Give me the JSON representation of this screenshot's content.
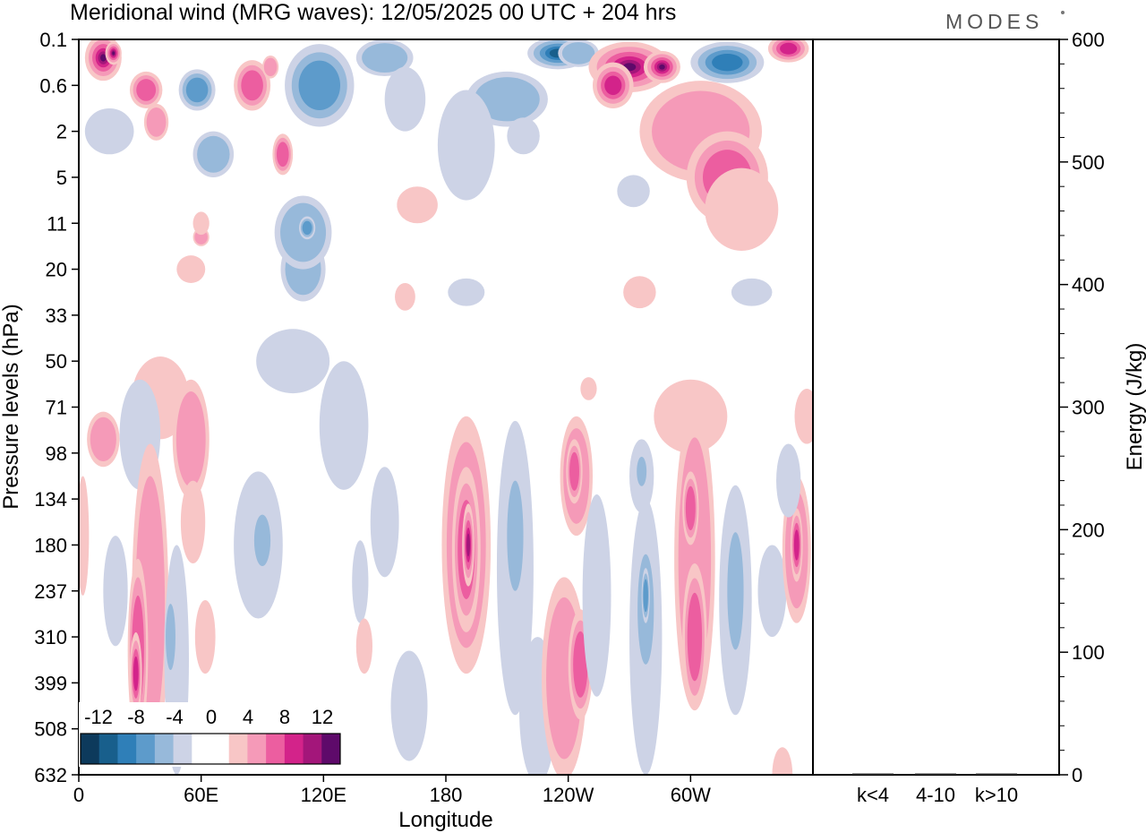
{
  "title": "Meridional wind (MRG waves):  12/05/2025  00 UTC  + 204 hrs",
  "logo": "MODES",
  "colors": {
    "neg": [
      "#0d3a5c",
      "#185f8c",
      "#2f7fb8",
      "#5d9bcb",
      "#97b9da",
      "#cdd3e6"
    ],
    "pos": [
      "#f8c6c6",
      "#f59ab8",
      "#ec5ea0",
      "#d3238a",
      "#a3167a",
      "#5e0a6a"
    ],
    "frame": "#000000"
  },
  "chart_data": [
    {
      "type": "heatmap",
      "title": "Meridional wind (MRG waves):  12/05/2025  00 UTC  + 204 hrs",
      "xlabel": "Longitude",
      "ylabel": "Pressure levels (hPa)",
      "x_ticks": [
        "0",
        "60E",
        "120E",
        "180",
        "120W",
        "60W"
      ],
      "x_tick_values": [
        0,
        60,
        120,
        180,
        240,
        300
      ],
      "xlim": [
        0,
        360
      ],
      "y_ticks": [
        "0.1",
        "0.6",
        "2",
        "5",
        "11",
        "20",
        "33",
        "50",
        "71",
        "98",
        "134",
        "180",
        "237",
        "310",
        "399",
        "508",
        "632"
      ],
      "y_scale": "pressure levels, top to bottom",
      "colorbar": {
        "labels": [
          "-12",
          "-8",
          "-4",
          "0",
          "4",
          "8",
          "12"
        ],
        "levels": [
          -14,
          -12,
          -10,
          -8,
          -6,
          -4,
          -2,
          2,
          4,
          6,
          8,
          10,
          12,
          14
        ],
        "placement": "bottom-left inset"
      },
      "blobs": [
        {
          "lon": 12,
          "lev": 0.4,
          "w": 9,
          "h": 0.5,
          "v": 11
        },
        {
          "lon": 17,
          "lev": 0.3,
          "w": 4,
          "h": 0.25,
          "v": 13
        },
        {
          "lon": 33,
          "lev": 1.1,
          "w": 8,
          "h": 0.4,
          "v": 5
        },
        {
          "lon": 38,
          "lev": 1.8,
          "w": 6,
          "h": 0.4,
          "v": 3
        },
        {
          "lon": 58,
          "lev": 1.1,
          "w": 9,
          "h": 0.45,
          "v": -5
        },
        {
          "lon": 66,
          "lev": 2.5,
          "w": 10,
          "h": 0.5,
          "v": -4
        },
        {
          "lon": 85,
          "lev": 1.0,
          "w": 9,
          "h": 0.55,
          "v": 5
        },
        {
          "lon": 94,
          "lev": 0.6,
          "w": 4,
          "h": 0.25,
          "v": 3
        },
        {
          "lon": 100,
          "lev": 2.5,
          "w": 5,
          "h": 0.45,
          "v": 5
        },
        {
          "lon": 60,
          "lev": 4.3,
          "w": 4,
          "h": 0.2,
          "v": 3
        },
        {
          "lon": 118,
          "lev": 1.0,
          "w": 17,
          "h": 0.9,
          "v": -5
        },
        {
          "lon": 150,
          "lev": 0.4,
          "w": 14,
          "h": 0.4,
          "v": -3
        },
        {
          "lon": 160,
          "lev": 1.3,
          "w": 10,
          "h": 0.7,
          "v": -2
        },
        {
          "lon": 15,
          "lev": 2.0,
          "w": 12,
          "h": 0.5,
          "v": -2
        },
        {
          "lon": 60,
          "lev": 4.0,
          "w": 4,
          "h": 0.25,
          "v": 2
        },
        {
          "lon": 55,
          "lev": 5.0,
          "w": 7,
          "h": 0.3,
          "v": 2
        },
        {
          "lon": 110,
          "lev": 5.0,
          "w": 11,
          "h": 0.7,
          "v": -3
        },
        {
          "lon": 210,
          "lev": 1.3,
          "w": 20,
          "h": 0.6,
          "v": -4
        },
        {
          "lon": 190,
          "lev": 2.3,
          "w": 14,
          "h": 1.2,
          "v": -2
        },
        {
          "lon": 218,
          "lev": 2.1,
          "w": 8,
          "h": 0.4,
          "v": -2
        },
        {
          "lon": 235,
          "lev": 0.3,
          "w": 15,
          "h": 0.35,
          "v": -9
        },
        {
          "lon": 245,
          "lev": 0.3,
          "w": 10,
          "h": 0.3,
          "v": -4
        },
        {
          "lon": 270,
          "lev": 0.6,
          "w": 20,
          "h": 0.55,
          "v": 12
        },
        {
          "lon": 286,
          "lev": 0.6,
          "w": 9,
          "h": 0.35,
          "v": 15
        },
        {
          "lon": 262,
          "lev": 1.0,
          "w": 10,
          "h": 0.5,
          "v": 7
        },
        {
          "lon": 318,
          "lev": 0.5,
          "w": 18,
          "h": 0.45,
          "v": -7
        },
        {
          "lon": 348,
          "lev": 0.2,
          "w": 10,
          "h": 0.3,
          "v": 7
        },
        {
          "lon": 305,
          "lev": 2.0,
          "w": 30,
          "h": 1.1,
          "v": 3
        },
        {
          "lon": 318,
          "lev": 3.0,
          "w": 20,
          "h": 1.0,
          "v": 5
        },
        {
          "lon": 325,
          "lev": 3.7,
          "w": 18,
          "h": 0.9,
          "v": 2
        },
        {
          "lon": 166,
          "lev": 3.6,
          "w": 10,
          "h": 0.4,
          "v": 2
        },
        {
          "lon": 272,
          "lev": 3.3,
          "w": 8,
          "h": 0.35,
          "v": -2
        },
        {
          "lon": 110,
          "lev": 4.2,
          "w": 14,
          "h": 0.8,
          "v": -3
        },
        {
          "lon": 112,
          "lev": 4.1,
          "w": 4,
          "h": 0.25,
          "v": -5
        },
        {
          "lon": 190,
          "lev": 5.5,
          "w": 9,
          "h": 0.3,
          "v": -2
        },
        {
          "lon": 275,
          "lev": 5.5,
          "w": 8,
          "h": 0.35,
          "v": 2
        },
        {
          "lon": 330,
          "lev": 5.5,
          "w": 10,
          "h": 0.3,
          "v": -2
        },
        {
          "lon": 160,
          "lev": 5.6,
          "w": 5,
          "h": 0.3,
          "v": 2
        },
        {
          "lon": 105,
          "lev": 7.0,
          "w": 18,
          "h": 0.7,
          "v": -2
        },
        {
          "lon": 130,
          "lev": 8.4,
          "w": 12,
          "h": 1.4,
          "v": -2
        },
        {
          "lon": 40,
          "lev": 7.8,
          "w": 14,
          "h": 0.9,
          "v": 2
        },
        {
          "lon": 55,
          "lev": 8.7,
          "w": 9,
          "h": 1.3,
          "v": 3
        },
        {
          "lon": 30,
          "lev": 8.6,
          "w": 10,
          "h": 1.2,
          "v": -2
        },
        {
          "lon": 12,
          "lev": 8.7,
          "w": 8,
          "h": 0.6,
          "v": 4
        },
        {
          "lon": 250,
          "lev": 7.6,
          "w": 4,
          "h": 0.25,
          "v": 2
        },
        {
          "lon": 300,
          "lev": 8.2,
          "w": 18,
          "h": 0.8,
          "v": 2
        },
        {
          "lon": 357,
          "lev": 8.2,
          "w": 6,
          "h": 0.6,
          "v": 2
        },
        {
          "lon": 35,
          "lev": 12.3,
          "w": 9,
          "h": 3.5,
          "v": 3
        },
        {
          "lon": 29,
          "lev": 13.3,
          "w": 5,
          "h": 2.0,
          "v": 5
        },
        {
          "lon": 28,
          "lev": 13.8,
          "w": 3,
          "h": 0.9,
          "v": 8
        },
        {
          "lon": 48,
          "lev": 13.5,
          "w": 6,
          "h": 2.5,
          "v": -2
        },
        {
          "lon": 45,
          "lev": 13.0,
          "w": 3,
          "h": 0.9,
          "v": -4
        },
        {
          "lon": 18,
          "lev": 12.0,
          "w": 6,
          "h": 1.2,
          "v": -2
        },
        {
          "lon": 2,
          "lev": 10.8,
          "w": 3,
          "h": 1.3,
          "v": 2
        },
        {
          "lon": 56,
          "lev": 10.5,
          "w": 6,
          "h": 0.9,
          "v": 2
        },
        {
          "lon": 62,
          "lev": 13.0,
          "w": 5,
          "h": 0.8,
          "v": 2
        },
        {
          "lon": 88,
          "lev": 11.0,
          "w": 12,
          "h": 1.6,
          "v": -2
        },
        {
          "lon": 90,
          "lev": 10.9,
          "w": 5,
          "h": 0.7,
          "v": -4
        },
        {
          "lon": 150,
          "lev": 10.5,
          "w": 7,
          "h": 1.2,
          "v": -2
        },
        {
          "lon": 138,
          "lev": 11.8,
          "w": 4,
          "h": 0.9,
          "v": -2
        },
        {
          "lon": 140,
          "lev": 13.2,
          "w": 4,
          "h": 0.6,
          "v": 2
        },
        {
          "lon": 162,
          "lev": 14.5,
          "w": 9,
          "h": 1.2,
          "v": -2
        },
        {
          "lon": 190,
          "lev": 11.0,
          "w": 12,
          "h": 2.8,
          "v": 3
        },
        {
          "lon": 190,
          "lev": 11.1,
          "w": 7,
          "h": 1.8,
          "v": 6
        },
        {
          "lon": 191,
          "lev": 11.0,
          "w": 3,
          "h": 0.9,
          "v": 9
        },
        {
          "lon": 214,
          "lev": 11.5,
          "w": 9,
          "h": 3.2,
          "v": -2
        },
        {
          "lon": 214,
          "lev": 10.8,
          "w": 5,
          "h": 1.5,
          "v": -4
        },
        {
          "lon": 225,
          "lev": 14.6,
          "w": 9,
          "h": 1.6,
          "v": -2
        },
        {
          "lon": 238,
          "lev": 13.9,
          "w": 11,
          "h": 2.2,
          "v": 3
        },
        {
          "lon": 246,
          "lev": 13.6,
          "w": 6,
          "h": 1.2,
          "v": 6
        },
        {
          "lon": 244,
          "lev": 9.5,
          "w": 8,
          "h": 1.3,
          "v": 3
        },
        {
          "lon": 243,
          "lev": 9.4,
          "w": 4,
          "h": 0.7,
          "v": 6
        },
        {
          "lon": 254,
          "lev": 12.1,
          "w": 7,
          "h": 2.2,
          "v": -2
        },
        {
          "lon": 278,
          "lev": 13.0,
          "w": 8,
          "h": 3.0,
          "v": -2
        },
        {
          "lon": 278,
          "lev": 12.4,
          "w": 5,
          "h": 1.5,
          "v": -4
        },
        {
          "lon": 278,
          "lev": 12.1,
          "w": 2,
          "h": 0.6,
          "v": -6
        },
        {
          "lon": 276,
          "lev": 9.5,
          "w": 6,
          "h": 0.8,
          "v": -2
        },
        {
          "lon": 276,
          "lev": 9.4,
          "w": 3,
          "h": 0.4,
          "v": -4
        },
        {
          "lon": 302,
          "lev": 11.3,
          "w": 10,
          "h": 3.3,
          "v": 3
        },
        {
          "lon": 302,
          "lev": 13.0,
          "w": 6,
          "h": 1.6,
          "v": 6
        },
        {
          "lon": 300,
          "lev": 10.2,
          "w": 4,
          "h": 0.8,
          "v": 6
        },
        {
          "lon": 322,
          "lev": 12.2,
          "w": 8,
          "h": 2.5,
          "v": -2
        },
        {
          "lon": 322,
          "lev": 12.0,
          "w": 5,
          "h": 1.6,
          "v": -4
        },
        {
          "lon": 340,
          "lev": 12.0,
          "w": 7,
          "h": 1.0,
          "v": -2
        },
        {
          "lon": 352,
          "lev": 11.1,
          "w": 7,
          "h": 1.6,
          "v": 3
        },
        {
          "lon": 352,
          "lev": 11.0,
          "w": 3,
          "h": 0.8,
          "v": 7
        },
        {
          "lon": 348,
          "lev": 9.6,
          "w": 6,
          "h": 0.8,
          "v": -2
        },
        {
          "lon": 345,
          "lev": 16.0,
          "w": 5,
          "h": 0.6,
          "v": 2
        }
      ]
    },
    {
      "type": "bar",
      "categories": [
        "k<4",
        "4-10",
        "k>10"
      ],
      "values": [
        0,
        1,
        0
      ],
      "ylabel": "Energy (J/kg)",
      "ylim": [
        0,
        600
      ],
      "y_ticks": [
        "0",
        "100",
        "200",
        "300",
        "400",
        "500",
        "600"
      ]
    }
  ]
}
